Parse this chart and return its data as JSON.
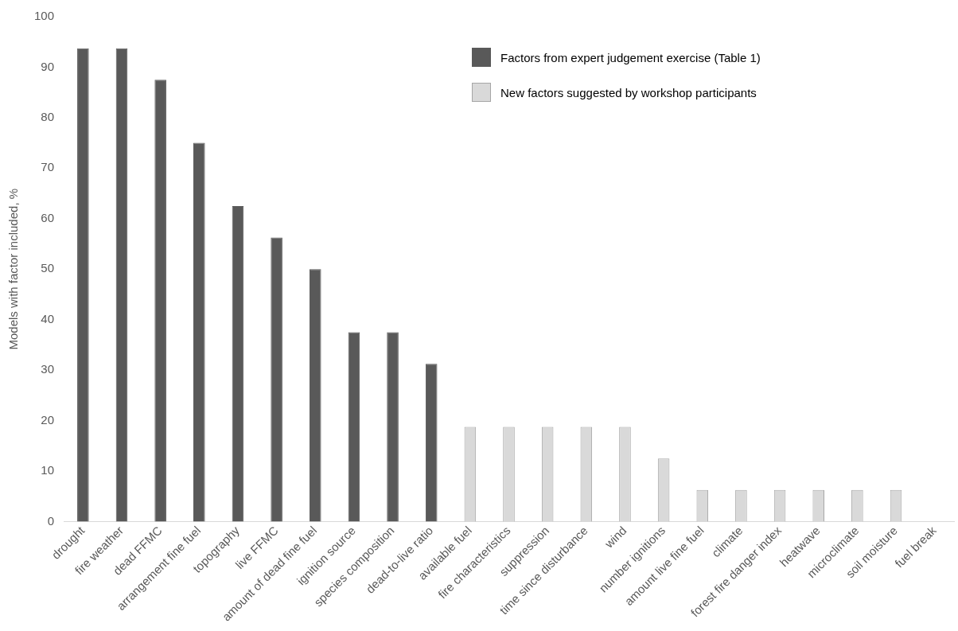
{
  "chart_data": {
    "type": "bar",
    "categories": [
      "drought",
      "fire weather",
      "dead FFMC",
      "arrangement fine fuel",
      "topography",
      "live FFMC",
      "amount of dead fine fuel",
      "ignition source",
      "species composition",
      "dead-to-live ratio",
      "available fuel",
      "fire characteristics",
      "suppression",
      "time since disturbance",
      "wind",
      "number ignitions",
      "amount live fine fuel",
      "climate",
      "forest fire danger index",
      "heatwave",
      "microclimate",
      "soil moisture",
      "fuel break"
    ],
    "series": [
      {
        "name": "Factors from expert judgement exercise (Table 1)",
        "color": "#595959",
        "values": [
          93.75,
          93.75,
          87.5,
          75,
          62.5,
          56.25,
          50,
          37.5,
          37.5,
          31.25,
          null,
          null,
          null,
          null,
          null,
          null,
          null,
          null,
          null,
          null,
          null,
          null,
          null
        ]
      },
      {
        "name": "New factors suggested by workshop participants",
        "color": "#d9d9d9",
        "values": [
          null,
          null,
          null,
          null,
          null,
          null,
          null,
          null,
          null,
          null,
          18.75,
          18.75,
          18.75,
          18.75,
          18.75,
          12.5,
          6.25,
          6.25,
          6.25,
          6.25,
          6.25,
          6.25,
          0
        ]
      }
    ],
    "ylabel": "Models with factor included, %",
    "ylim": [
      0,
      100
    ],
    "yticks": [
      0,
      10,
      20,
      30,
      40,
      50,
      60,
      70,
      80,
      90,
      100
    ],
    "grid": false,
    "legend": "top right"
  }
}
